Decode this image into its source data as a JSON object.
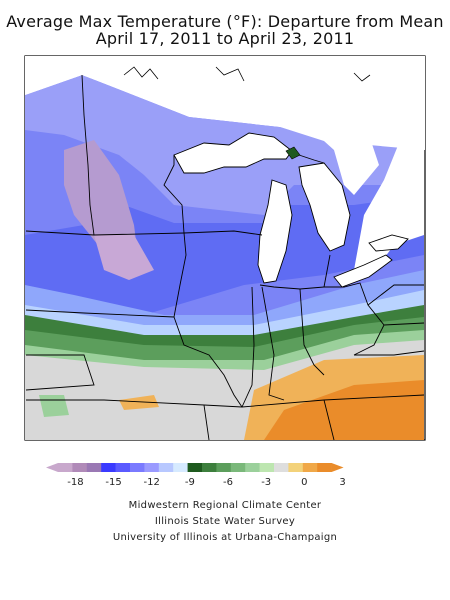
{
  "title": {
    "line1": "Average Max Temperature (°F): Departure from Mean",
    "line2": "April 17, 2011 to April 23, 2011"
  },
  "legend": {
    "ticks": [
      "-18",
      "-15",
      "-12",
      "-9",
      "-6",
      "-3",
      "0",
      "3"
    ],
    "colors": [
      "#c8a8cc",
      "#b08ab8",
      "#9a78b4",
      "#3a3aff",
      "#5a5aff",
      "#7a7aff",
      "#9a9aff",
      "#b8c8ff",
      "#d6eaff",
      "#1e5a1e",
      "#3d7f3d",
      "#5c9e5c",
      "#7ab87a",
      "#9bd09b",
      "#bde6b0",
      "#dedede",
      "#f3d27a",
      "#f0a848",
      "#ea8c2a"
    ]
  },
  "credits": {
    "line1": "Midwestern Regional Climate Center",
    "line2": "Illinois State Water Survey",
    "line3": "University of Illinois at Urbana-Champaign"
  }
}
